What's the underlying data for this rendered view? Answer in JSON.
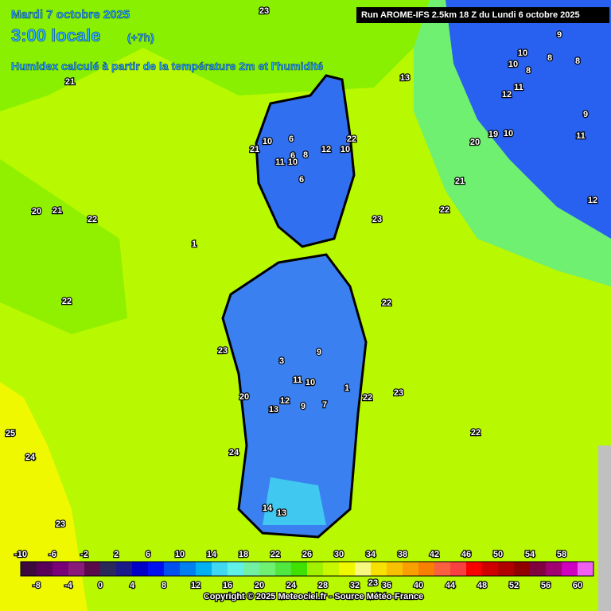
{
  "header": {
    "date": "Mardi 7 octobre 2025",
    "time": "3:00 locale",
    "offset": "(+7h)",
    "description": "Humidex calculé à partir de la température 2m et l'humidité",
    "run": "Run AROME-IFS 2.5km 18 Z du Lundi 6 octobre 2025"
  },
  "footer": {
    "copyright": "Copyright © 2025 Meteociel.fr - Source Météo-France"
  },
  "contour_labels": [
    23,
    21,
    20,
    21,
    22,
    22,
    1,
    6,
    10,
    21,
    6,
    8,
    12,
    10,
    22,
    11,
    10,
    6,
    23,
    22,
    21,
    20,
    19,
    10,
    9,
    10,
    8,
    8,
    10,
    8,
    11,
    12,
    9,
    11,
    12,
    13,
    22,
    9,
    3,
    23,
    11,
    10,
    1,
    22,
    23,
    20,
    12,
    13,
    9,
    7,
    22,
    25,
    24,
    24,
    23,
    14,
    13,
    23
  ],
  "legend": {
    "labels_top": [
      -10,
      -6,
      -2,
      2,
      6,
      10,
      14,
      18,
      22,
      26,
      30,
      34,
      38,
      42,
      46,
      50,
      54,
      58
    ],
    "labels_bottom": [
      -8,
      -4,
      0,
      4,
      8,
      12,
      16,
      20,
      24,
      28,
      32,
      36,
      40,
      44,
      48,
      52,
      56,
      60
    ],
    "colors": [
      "#3c0a3c",
      "#5a005a",
      "#7a007a",
      "#8a1a7a",
      "#5a0a4a",
      "#2a2a5a",
      "#1a1a8a",
      "#0000c8",
      "#0010f0",
      "#0050f0",
      "#0080f0",
      "#00b0f0",
      "#40d8f0",
      "#60f0e8",
      "#70f0a0",
      "#70f070",
      "#50e840",
      "#40e000",
      "#a0f000",
      "#c8f800",
      "#f0f800",
      "#f8f880",
      "#f8e000",
      "#f8c000",
      "#f8a000",
      "#f88000",
      "#f86040",
      "#f84040",
      "#f80000",
      "#d00000",
      "#b00000",
      "#900000",
      "#800040",
      "#a00070",
      "#d000c0",
      "#f060f0"
    ]
  }
}
